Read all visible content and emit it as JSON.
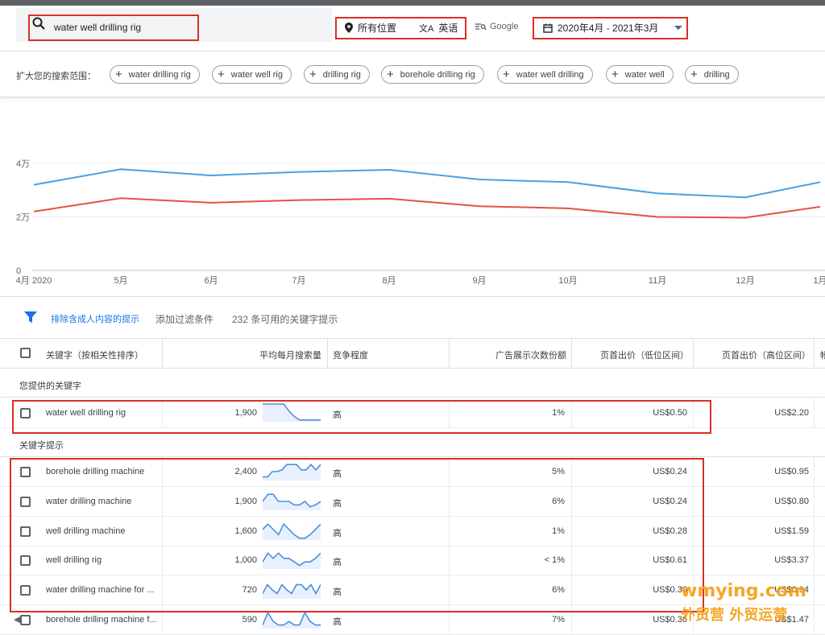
{
  "search": {
    "value": "water well drilling rig"
  },
  "targeting": {
    "location": "所有位置",
    "language": "英语",
    "network": "Google",
    "date_range": "2020年4月 - 2021年3月"
  },
  "expand": {
    "label": "扩大您的搜索范围：",
    "chips": [
      "water drilling rig",
      "water well rig",
      "drilling rig",
      "borehole drilling rig",
      "water well drilling",
      "water well",
      "drilling"
    ]
  },
  "chart_data": {
    "type": "line",
    "categories": [
      "4月 2020",
      "5月",
      "6月",
      "7月",
      "8月",
      "9月",
      "10月",
      "11月",
      "12月",
      "1月"
    ],
    "series": [
      {
        "color": "#4a9fe0",
        "values": [
          32000,
          37800,
          35500,
          36800,
          37600,
          34000,
          33000,
          28800,
          27300,
          33000
        ]
      },
      {
        "color": "#e3533d",
        "values": [
          22000,
          27000,
          25300,
          26300,
          26800,
          24000,
          23200,
          20000,
          19700,
          23800
        ]
      }
    ],
    "y_ticks": [
      "0",
      "2万",
      "4万"
    ],
    "ylim": [
      0,
      40000
    ],
    "grid": true
  },
  "filters": {
    "exclude_adult": "排除含成人内容的提示",
    "add_filter": "添加过滤条件",
    "count": "232 条可用的关键字提示"
  },
  "columns": {
    "keyword": "关键字（按相关性排序）",
    "avg_searches": "平均每月搜索量",
    "competition": "竞争程度",
    "impression_share": "广告展示次数份额",
    "bid_low": "页首出价（低位区间）",
    "bid_high": "页首出价（高位区间）",
    "more": "帐"
  },
  "sections": {
    "provided": "您提供的关键字",
    "ideas": "关键字提示"
  },
  "provided_rows": [
    {
      "keyword": "water well drilling rig",
      "searches": "1,900",
      "competition": "高",
      "share": "1%",
      "low": "US$0.50",
      "high": "US$2.20",
      "trend": [
        10,
        10,
        10,
        10,
        10,
        6,
        3,
        1,
        1,
        1,
        1,
        1
      ]
    }
  ],
  "idea_rows": [
    {
      "keyword": "borehole drilling machine",
      "searches": "2,400",
      "competition": "高",
      "share": "5%",
      "low": "US$0.24",
      "high": "US$0.95",
      "trend": [
        2,
        2,
        5,
        5,
        6,
        9,
        9,
        9,
        6,
        6,
        9,
        6,
        9
      ]
    },
    {
      "keyword": "water drilling machine",
      "searches": "1,900",
      "competition": "高",
      "share": "6%",
      "low": "US$0.24",
      "high": "US$0.80",
      "trend": [
        5,
        9,
        9,
        5,
        5,
        5,
        3,
        3,
        5,
        2,
        3,
        5
      ]
    },
    {
      "keyword": "well drilling machine",
      "searches": "1,600",
      "competition": "高",
      "share": "1%",
      "low": "US$0.28",
      "high": "US$1.59",
      "trend": [
        6,
        9,
        6,
        3,
        9,
        6,
        3,
        1,
        1,
        3,
        6,
        9
      ]
    },
    {
      "keyword": "well drilling rig",
      "searches": "1,000",
      "competition": "高",
      "share": "< 1%",
      "low": "US$0.61",
      "high": "US$3.37",
      "trend": [
        4,
        9,
        6,
        9,
        6,
        6,
        4,
        2,
        4,
        4,
        6,
        9
      ]
    },
    {
      "keyword": "water drilling machine for ...",
      "searches": "720",
      "competition": "高",
      "share": "6%",
      "low": "US$0.30",
      "high": "US$0.94",
      "trend": [
        3,
        8,
        5,
        3,
        8,
        5,
        3,
        8,
        8,
        5,
        8,
        3,
        8
      ]
    },
    {
      "keyword": "borehole drilling machine f...",
      "searches": "590",
      "competition": "高",
      "share": "7%",
      "low": "US$0.36",
      "high": "US$1.47",
      "trend": [
        2,
        9,
        4,
        2,
        2,
        4,
        2,
        2,
        9,
        4,
        2,
        2
      ]
    }
  ],
  "watermark": {
    "line1": "wmying.com",
    "line2": "外贸营 外贸运营"
  },
  "colors": {
    "accent": "#1a73e8",
    "highlight": "#d93025"
  }
}
